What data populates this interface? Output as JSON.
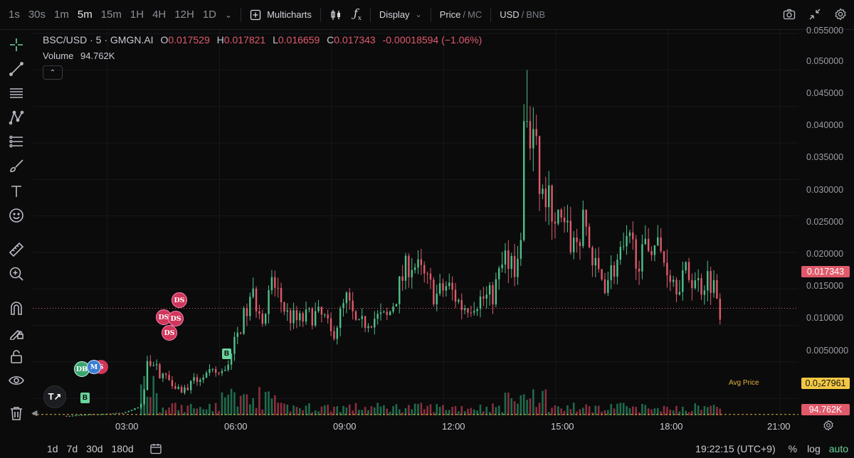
{
  "toolbar": {
    "timeframes": [
      "1s",
      "30s",
      "1m",
      "5m",
      "15m",
      "1H",
      "4H",
      "12H",
      "1D"
    ],
    "active_timeframe": "5m",
    "multicharts": "Multicharts",
    "display": "Display",
    "price_label": "Price",
    "mc_label": "MC",
    "usd_label": "USD",
    "bnb_label": "BNB"
  },
  "legend": {
    "symbol": "BSC/USD · 5 · GMGN.AI",
    "o_label": "O",
    "o": "0.017529",
    "h_label": "H",
    "h": "0.017821",
    "l_label": "L",
    "l": "0.016659",
    "c_label": "C",
    "c": "0.017343",
    "change": "-0.00018594 (−1.06%)",
    "volume_label": "Volume",
    "volume": "94.762K"
  },
  "colors": {
    "up": "#4fbf8a",
    "down": "#e05a6b",
    "bg": "#0b0b0c",
    "avg": "#e0b43a"
  },
  "markers": {
    "ds": "DS",
    "db": "DB",
    "m": "M",
    "s": "S",
    "b": "B"
  },
  "avg_price_label": "Avg Price",
  "current_price_tag": "0.017343",
  "avg_price_tag": "0.0₂27961",
  "volume_tag": "94.762K",
  "bottom": {
    "ranges": [
      "1d",
      "7d",
      "30d",
      "180d"
    ],
    "clock": "19:22:15 (UTC+9)",
    "percent": "%",
    "log": "log",
    "auto": "auto"
  },
  "chart_data": {
    "type": "candlestick",
    "y_ticks": [
      "0.055000",
      "0.050000",
      "0.045000",
      "0.040000",
      "0.035000",
      "0.030000",
      "0.025000",
      "0.020000",
      "0.015000",
      "0.010000",
      "0.0050000"
    ],
    "x_ticks": [
      "03:00",
      "06:00",
      "09:00",
      "12:00",
      "15:00",
      "18:00",
      "21:00"
    ],
    "ylim": [
      0.0019,
      0.0555
    ],
    "x_hours": [
      1.0,
      21.5
    ],
    "last_price": 0.017343,
    "avg_price": 0.0027961,
    "close_path": [
      [
        1.9,
        0.0026
      ],
      [
        3.4,
        0.003
      ],
      [
        3.95,
        0.004
      ],
      [
        4.05,
        0.011
      ],
      [
        4.25,
        0.0095
      ],
      [
        4.4,
        0.0085
      ],
      [
        4.7,
        0.0075
      ],
      [
        5.0,
        0.006
      ],
      [
        5.5,
        0.008
      ],
      [
        5.9,
        0.0085
      ],
      [
        6.1,
        0.0085
      ],
      [
        6.3,
        0.011
      ],
      [
        6.6,
        0.0155
      ],
      [
        6.9,
        0.019
      ],
      [
        7.2,
        0.016
      ],
      [
        7.4,
        0.021
      ],
      [
        7.6,
        0.019
      ],
      [
        7.8,
        0.0165
      ],
      [
        8.1,
        0.0155
      ],
      [
        8.5,
        0.0165
      ],
      [
        8.8,
        0.016
      ],
      [
        9.0,
        0.0135
      ],
      [
        9.4,
        0.0185
      ],
      [
        9.7,
        0.0145
      ],
      [
        10.0,
        0.016
      ],
      [
        10.5,
        0.016
      ],
      [
        10.9,
        0.0215
      ],
      [
        11.1,
        0.024
      ],
      [
        11.4,
        0.022
      ],
      [
        11.8,
        0.019
      ],
      [
        12.1,
        0.0205
      ],
      [
        12.5,
        0.0175
      ],
      [
        12.9,
        0.0185
      ],
      [
        13.3,
        0.019
      ],
      [
        13.7,
        0.025
      ],
      [
        14.0,
        0.023
      ],
      [
        14.2,
        0.038
      ],
      [
        14.4,
        0.041
      ],
      [
        14.6,
        0.033
      ],
      [
        14.8,
        0.032
      ],
      [
        15.2,
        0.028
      ],
      [
        15.5,
        0.026
      ],
      [
        15.8,
        0.029
      ],
      [
        16.0,
        0.023
      ],
      [
        16.3,
        0.021
      ],
      [
        16.7,
        0.024
      ],
      [
        17.0,
        0.026
      ],
      [
        17.3,
        0.024
      ],
      [
        17.6,
        0.027
      ],
      [
        17.9,
        0.024
      ],
      [
        18.2,
        0.021
      ],
      [
        18.5,
        0.022
      ],
      [
        18.9,
        0.0205
      ],
      [
        19.1,
        0.022
      ],
      [
        19.3,
        0.0195
      ],
      [
        19.4,
        0.017343
      ]
    ]
  }
}
